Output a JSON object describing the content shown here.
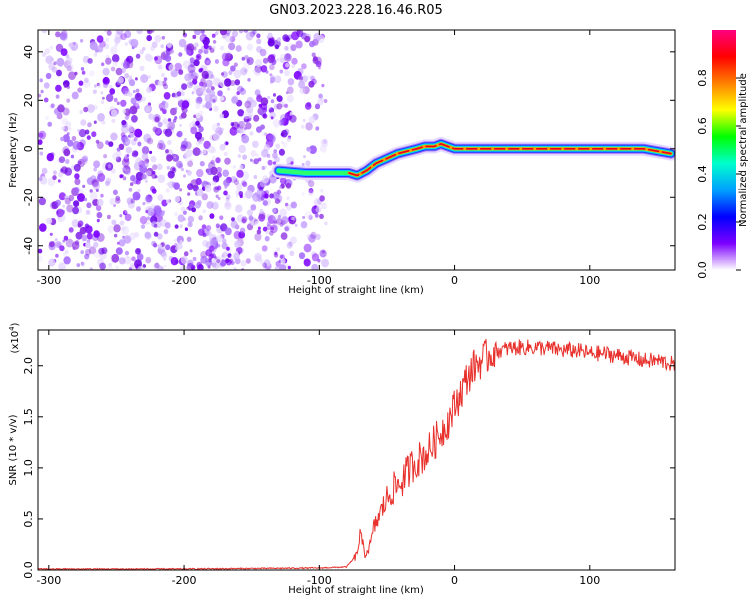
{
  "title": "GN03.2023.228.16.46.R05",
  "chart_data": [
    {
      "type": "heatmap",
      "xlabel": "Height of straight line (km)",
      "ylabel": "Frequency (Hz)",
      "xlim": [
        -308,
        163
      ],
      "ylim": [
        -50,
        49
      ],
      "xticks": [
        -300,
        -200,
        -100,
        0,
        100
      ],
      "yticks": [
        -40,
        -20,
        0,
        20,
        40
      ],
      "noise_region_x": [
        -308,
        -95
      ],
      "signal_track": {
        "x": [
          -130,
          -110,
          -95,
          -85,
          -78,
          -72,
          -65,
          -58,
          -50,
          -42,
          -35,
          -28,
          -22,
          -15,
          -10,
          -5,
          0,
          10,
          20,
          40,
          60,
          80,
          100,
          120,
          140,
          150,
          160
        ],
        "y": [
          -9,
          -10,
          -10,
          -10,
          -10,
          -11,
          -9,
          -6,
          -4,
          -2,
          -1,
          0,
          1,
          1,
          2,
          1,
          0,
          0,
          0,
          0,
          0,
          0,
          0,
          0,
          0,
          -1,
          -2
        ]
      },
      "colorbar": {
        "label": "Normalized spectral amplitude",
        "range": [
          0,
          1
        ],
        "ticks": [
          "0.0",
          "0.2",
          "0.4",
          "0.6",
          "0.8"
        ],
        "colors": [
          "#ffffff",
          "#7c00ff",
          "#0000ff",
          "#00a0ff",
          "#00ffcc",
          "#00ff00",
          "#ffff00",
          "#ff8000",
          "#ff0000",
          "#ff0080"
        ]
      }
    },
    {
      "type": "line",
      "xlabel": "Height of straight line (km)",
      "ylabel": "SNR (10 * v/v)",
      "y_exponent": "(x10",
      "y_exponent_power": "4",
      "y_exponent_close": ")",
      "xlim": [
        -308,
        163
      ],
      "ylim": [
        0,
        2.35
      ],
      "xticks": [
        -300,
        -200,
        -100,
        0,
        100
      ],
      "yticks": [
        "0.0",
        "0.5",
        "1.0",
        "1.5",
        "2.0"
      ],
      "series": [
        {
          "color": "#e8312c",
          "x": [
            -308,
            -250,
            -200,
            -150,
            -100,
            -80,
            -72,
            -70,
            -66,
            -62,
            -60,
            -55,
            -50,
            -45,
            -40,
            -35,
            -30,
            -25,
            -20,
            -15,
            -10,
            -5,
            0,
            5,
            10,
            15,
            20,
            25,
            30,
            35,
            40,
            50,
            60,
            70,
            80,
            90,
            100,
            110,
            120,
            130,
            140,
            150,
            160,
            163
          ],
          "y": [
            0.01,
            0.01,
            0.01,
            0.015,
            0.02,
            0.03,
            0.15,
            0.35,
            0.15,
            0.25,
            0.4,
            0.55,
            0.7,
            0.8,
            0.85,
            0.95,
            1.05,
            1.1,
            1.15,
            1.25,
            1.35,
            1.45,
            1.6,
            1.75,
            1.9,
            2.0,
            2.05,
            2.1,
            2.15,
            2.15,
            2.17,
            2.18,
            2.18,
            2.17,
            2.15,
            2.15,
            2.12,
            2.12,
            2.1,
            2.08,
            2.05,
            2.05,
            2.02,
            2.0
          ]
        }
      ]
    }
  ]
}
